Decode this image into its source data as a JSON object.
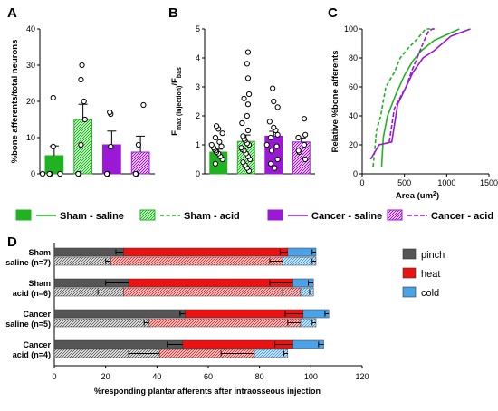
{
  "panel_letters": [
    "A",
    "B",
    "C",
    "D"
  ],
  "colors": {
    "sham": "#1fb31f",
    "cancer": "#9a18d6",
    "pinch": "#555555",
    "heat": "#ee1111",
    "cold": "#4aa3e8"
  },
  "chart_data": [
    {
      "panel": "A",
      "type": "bar",
      "ylabel": "%bone afferents/total neurons",
      "ylim": [
        0,
        40
      ],
      "yticks": [
        0,
        10,
        20,
        30,
        40
      ],
      "categories": [
        "Sham - saline",
        "Sham - acid",
        "Cancer - saline",
        "Cancer - acid"
      ],
      "values": [
        5,
        15,
        8,
        6
      ],
      "sem": [
        2.7,
        4.2,
        3.8,
        4.4
      ],
      "points": [
        [
          0,
          0,
          0,
          0,
          7.5,
          21
        ],
        [
          0,
          0,
          8,
          15,
          20,
          26,
          30
        ],
        [
          0,
          0,
          7.5,
          16.5,
          17
        ],
        [
          0,
          0,
          8,
          19
        ]
      ]
    },
    {
      "panel": "B",
      "type": "bar",
      "ylabel": "Fmax (injection)/Fbas",
      "ylabel_main": "F",
      "ylabel_sub1": "max (injection)",
      "ylabel_mid": "/F",
      "ylabel_sub2": "bas",
      "ylim": [
        0,
        5
      ],
      "yticks": [
        0,
        1,
        2,
        3,
        4,
        5
      ],
      "categories": [
        "Sham - saline",
        "Sham - acid",
        "Cancer - saline",
        "Cancer - acid"
      ],
      "values": [
        0.75,
        1.12,
        1.3,
        1.1
      ],
      "sem": [
        0.1,
        0.22,
        0.17,
        0.14
      ],
      "points": [
        [
          0.35,
          0.5,
          0.6,
          0.7,
          0.75,
          0.8,
          0.85,
          0.9,
          0.95,
          1.0,
          1.1,
          1.25,
          1.4,
          1.55,
          1.65
        ],
        [
          0.1,
          0.2,
          0.3,
          0.4,
          0.5,
          0.6,
          0.7,
          0.8,
          0.85,
          0.9,
          1.0,
          1.05,
          1.15,
          1.2,
          1.3,
          1.5,
          1.75,
          2.0,
          2.4,
          2.6,
          2.75,
          3.3,
          3.8,
          4.2
        ],
        [
          0.2,
          0.35,
          0.5,
          0.8,
          0.95,
          1.0,
          1.25,
          1.35,
          1.5,
          1.6,
          1.8,
          2.3,
          2.5,
          2.95
        ],
        [
          0.5,
          0.75,
          0.8,
          1.0,
          1.25,
          1.35,
          1.9
        ]
      ]
    },
    {
      "panel": "C",
      "type": "line",
      "xlabel": "Area (um2)",
      "xlabel_main": "Area (um",
      "xlabel_sup": "2",
      "xlabel_end": ")",
      "ylabel": "Relative %bone afferents",
      "xlim": [
        0,
        1500
      ],
      "ylim": [
        0,
        100
      ],
      "xticks": [
        0,
        500,
        1000,
        1500
      ],
      "yticks": [
        0,
        20,
        40,
        60,
        80,
        100
      ],
      "series": [
        {
          "name": "Sham - saline",
          "x": [
            230,
            250,
            300,
            400,
            500,
            600,
            700,
            850,
            1000,
            1150
          ],
          "y": [
            5,
            25,
            40,
            55,
            68,
            78,
            85,
            92,
            96,
            100
          ]
        },
        {
          "name": "Sham - acid",
          "x": [
            130,
            170,
            220,
            280,
            380,
            450,
            550,
            650,
            750,
            850
          ],
          "y": [
            5,
            30,
            40,
            60,
            70,
            80,
            87,
            93,
            100,
            100
          ]
        },
        {
          "name": "Cancer - saline",
          "x": [
            100,
            200,
            350,
            420,
            520,
            600,
            720,
            850,
            1050,
            1280
          ],
          "y": [
            10,
            20,
            22,
            48,
            60,
            70,
            80,
            85,
            95,
            100
          ]
        },
        {
          "name": "Cancer - acid",
          "x": [
            320,
            380,
            470,
            520,
            580,
            650,
            720,
            780,
            830,
            880
          ],
          "y": [
            22,
            45,
            55,
            60,
            70,
            80,
            90,
            98,
            100,
            100
          ]
        }
      ]
    },
    {
      "panel": "D",
      "type": "bar",
      "orientation": "horizontal",
      "stacked": true,
      "xlabel": "%responding plantar afferents after intraosseous injection",
      "xlim": [
        0,
        120
      ],
      "xticks": [
        0,
        20,
        40,
        60,
        80,
        100,
        120
      ],
      "groups": [
        {
          "label_line1": "Sham",
          "label_line2": "saline (n=7)",
          "top": {
            "pinch": 27,
            "heat": 64,
            "cold": 11,
            "err_pinch": 3,
            "err_heat": 3,
            "err_cold": 1.5
          },
          "bottom": {
            "pinch": 22,
            "heat": 67,
            "cold": 13,
            "err_pinch": 2,
            "err_heat": 5,
            "err_cold": 1.5
          }
        },
        {
          "label_line1": "Sham",
          "label_line2": "acid (n=6)",
          "top": {
            "pinch": 29,
            "heat": 64,
            "cold": 8,
            "err_pinch": 9,
            "err_heat": 9,
            "err_cold": 2
          },
          "bottom": {
            "pinch": 27,
            "heat": 69,
            "cold": 5,
            "err_pinch": 10,
            "err_heat": 7,
            "err_cold": 1.5
          }
        },
        {
          "label_line1": "Cancer",
          "label_line2": "saline (n=5)",
          "top": {
            "pinch": 51,
            "heat": 46,
            "cold": 10,
            "err_pinch": 2,
            "err_heat": 7,
            "err_cold": 1.5
          },
          "bottom": {
            "pinch": 37,
            "heat": 59,
            "cold": 6,
            "err_pinch": 2,
            "err_heat": 5,
            "err_cold": 1.5
          }
        },
        {
          "label_line1": "Cancer",
          "label_line2": "acid (n=4)",
          "top": {
            "pinch": 50,
            "heat": 43,
            "cold": 12,
            "err_pinch": 6,
            "err_heat": 7,
            "err_cold": 2
          },
          "bottom": {
            "pinch": 41,
            "heat": 37,
            "cold": 13,
            "err_pinch": 12,
            "err_heat": 13,
            "err_cold": 1.5
          }
        }
      ],
      "legend": [
        "pinch",
        "heat",
        "cold"
      ]
    }
  ],
  "legend": [
    {
      "label": "Sham - saline"
    },
    {
      "label": "Sham - acid"
    },
    {
      "label": "Cancer - saline"
    },
    {
      "label": "Cancer - acid"
    }
  ]
}
